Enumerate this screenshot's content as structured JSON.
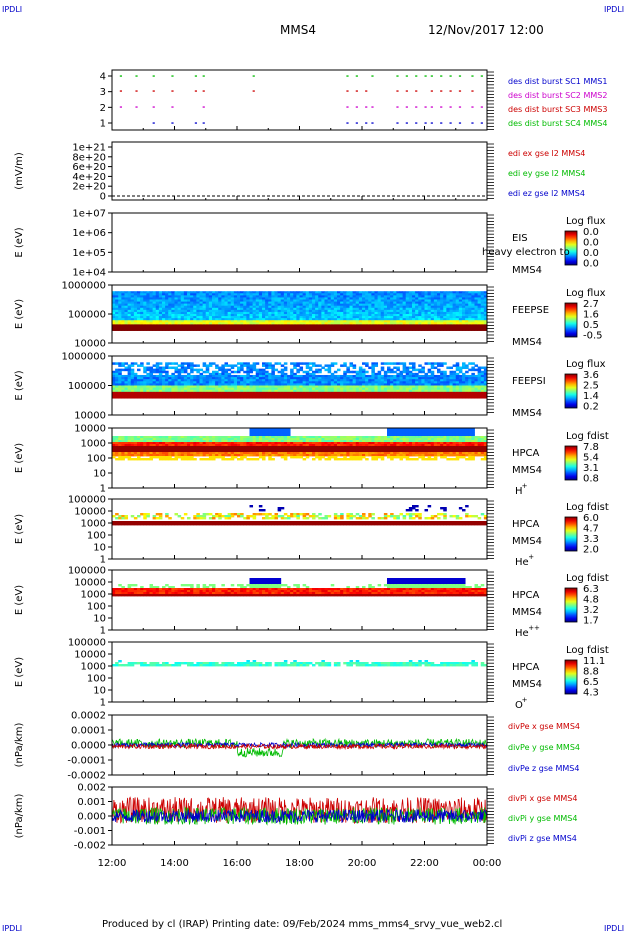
{
  "header": {
    "corner_tl": "IPDLI",
    "corner_tr": "IPDLI",
    "corner_bl": "IPDLI",
    "corner_br": "IPDLI",
    "spacecraft": "MMS4",
    "datetime": "12/Nov/2017 12:00"
  },
  "footer": {
    "text": "Produced by cl (IRAP)   Printing date: 09/Feb/2024   mms_mms4_srvy_vue_web2.cl"
  },
  "chart_data": [
    {
      "id": "burst",
      "type": "scatter",
      "ylabel": "",
      "yticks": [
        "4",
        "3",
        "2",
        "1"
      ],
      "legend": [
        {
          "label": "des dist burst SC1 MMS1",
          "color": "#0000cc"
        },
        {
          "label": "des dist burst SC2 MMS2",
          "color": "#cc00cc"
        },
        {
          "label": "des dist burst SC3 MMS3",
          "color": "#cc0000"
        },
        {
          "label": "des dist burst SC4 MMS4",
          "color": "#00bb00"
        }
      ],
      "burst_times_h": [
        12.25,
        12.75,
        13.3,
        13.9,
        14.65,
        14.9,
        16.5,
        19.5,
        19.8,
        20.1,
        20.3,
        21.1,
        21.4,
        21.7,
        22.0,
        22.2,
        22.5,
        22.8,
        23.1,
        23.5,
        23.8
      ]
    },
    {
      "id": "edi",
      "type": "line",
      "ylabel": "(mV/m)",
      "yticks": [
        "1e+21",
        "8e+20",
        "6e+20",
        "4e+20",
        "2e+20",
        "0"
      ],
      "ylim": [
        0,
        1e+21
      ],
      "legend": [
        {
          "label": "edi ex gse l2 MMS4",
          "color": "#cc0000"
        },
        {
          "label": "edi ey gse l2 MMS4",
          "color": "#00bb00"
        },
        {
          "label": "edi ez gse l2 MMS4",
          "color": "#0000cc"
        }
      ]
    },
    {
      "id": "eis",
      "type": "heatmap",
      "ylabel": "E (eV)",
      "yticks": [
        "1e+07",
        "1e+06",
        "1e+05",
        "1e+04"
      ],
      "instrument": [
        "EIS",
        "MMS4"
      ],
      "overlay": "ExTOF proton flux / heavy electron too",
      "overlay_short": "heavy electron to",
      "cbar": {
        "title": "Log flux",
        "values": [
          "0.0",
          "0.0",
          "0.0",
          "0.0"
        ]
      }
    },
    {
      "id": "feepse",
      "type": "heatmap",
      "ylabel": "E (eV)",
      "yticks": [
        "1000000",
        "100000",
        "10000"
      ],
      "instrument": [
        "FEEPSE",
        "MMS4"
      ],
      "cbar": {
        "title": "Log flux",
        "values": [
          "2.7",
          "1.6",
          "0.5",
          "-0.5"
        ]
      }
    },
    {
      "id": "feepsi",
      "type": "heatmap",
      "ylabel": "E (eV)",
      "yticks": [
        "1000000",
        "100000",
        "10000"
      ],
      "instrument": [
        "FEEPSI",
        "MMS4"
      ],
      "cbar": {
        "title": "Log flux",
        "values": [
          "3.6",
          "2.5",
          "1.4",
          "0.2"
        ]
      }
    },
    {
      "id": "hpca_h",
      "type": "heatmap",
      "ylabel": "E (eV)",
      "yticks": [
        "10000",
        "1000",
        "100",
        "10",
        "1"
      ],
      "instrument": [
        "HPCA",
        "MMS4",
        "H",
        "+"
      ],
      "cbar": {
        "title": "Log fdist",
        "values": [
          "7.8",
          "5.4",
          "3.1",
          "0.8"
        ]
      }
    },
    {
      "id": "hpca_he1",
      "type": "heatmap",
      "ylabel": "E (eV)",
      "yticks": [
        "100000",
        "10000",
        "1000",
        "100",
        "10",
        "1"
      ],
      "instrument": [
        "HPCA",
        "MMS4",
        "He",
        "+"
      ],
      "cbar": {
        "title": "Log fdist",
        "values": [
          "6.0",
          "4.7",
          "3.3",
          "2.0"
        ]
      }
    },
    {
      "id": "hpca_he2",
      "type": "heatmap",
      "ylabel": "E (eV)",
      "yticks": [
        "100000",
        "10000",
        "1000",
        "100",
        "10",
        "1"
      ],
      "instrument": [
        "HPCA",
        "MMS4",
        "He",
        "++"
      ],
      "cbar": {
        "title": "Log fdist",
        "values": [
          "6.3",
          "4.8",
          "3.2",
          "1.7"
        ]
      }
    },
    {
      "id": "hpca_o",
      "type": "heatmap",
      "ylabel": "E (eV)",
      "yticks": [
        "100000",
        "10000",
        "1000",
        "100",
        "10",
        "1"
      ],
      "instrument": [
        "HPCA",
        "MMS4",
        "O",
        "+"
      ],
      "cbar": {
        "title": "Log fdist",
        "values": [
          "11.1",
          "8.8",
          "6.5",
          "4.3"
        ]
      }
    },
    {
      "id": "divpe",
      "type": "line",
      "ylabel": "(nPa/km)",
      "yticks": [
        "0.0002",
        "0.0001",
        "0.0000",
        "-0.0001",
        "-0.0002"
      ],
      "ylim": [
        -0.0002,
        0.0002
      ],
      "legend": [
        {
          "label": "divPe x gse MMS4",
          "color": "#cc0000"
        },
        {
          "label": "divPe y gse MMS4",
          "color": "#00bb00"
        },
        {
          "label": "divPe z gse MMS4",
          "color": "#0000cc"
        }
      ]
    },
    {
      "id": "divpi",
      "type": "line",
      "ylabel": "(nPa/km)",
      "yticks": [
        "0.002",
        "0.001",
        "0.000",
        "-0.001",
        "-0.002"
      ],
      "ylim": [
        -0.002,
        0.002
      ],
      "legend": [
        {
          "label": "divPi x gse MMS4",
          "color": "#cc0000"
        },
        {
          "label": "divPi y gse MMS4",
          "color": "#00bb00"
        },
        {
          "label": "divPi z gse MMS4",
          "color": "#0000cc"
        }
      ]
    }
  ],
  "x_axis": {
    "ticks": [
      "12:00",
      "14:00",
      "16:00",
      "18:00",
      "20:00",
      "22:00",
      "00:00"
    ],
    "range_h": [
      12,
      24
    ]
  }
}
